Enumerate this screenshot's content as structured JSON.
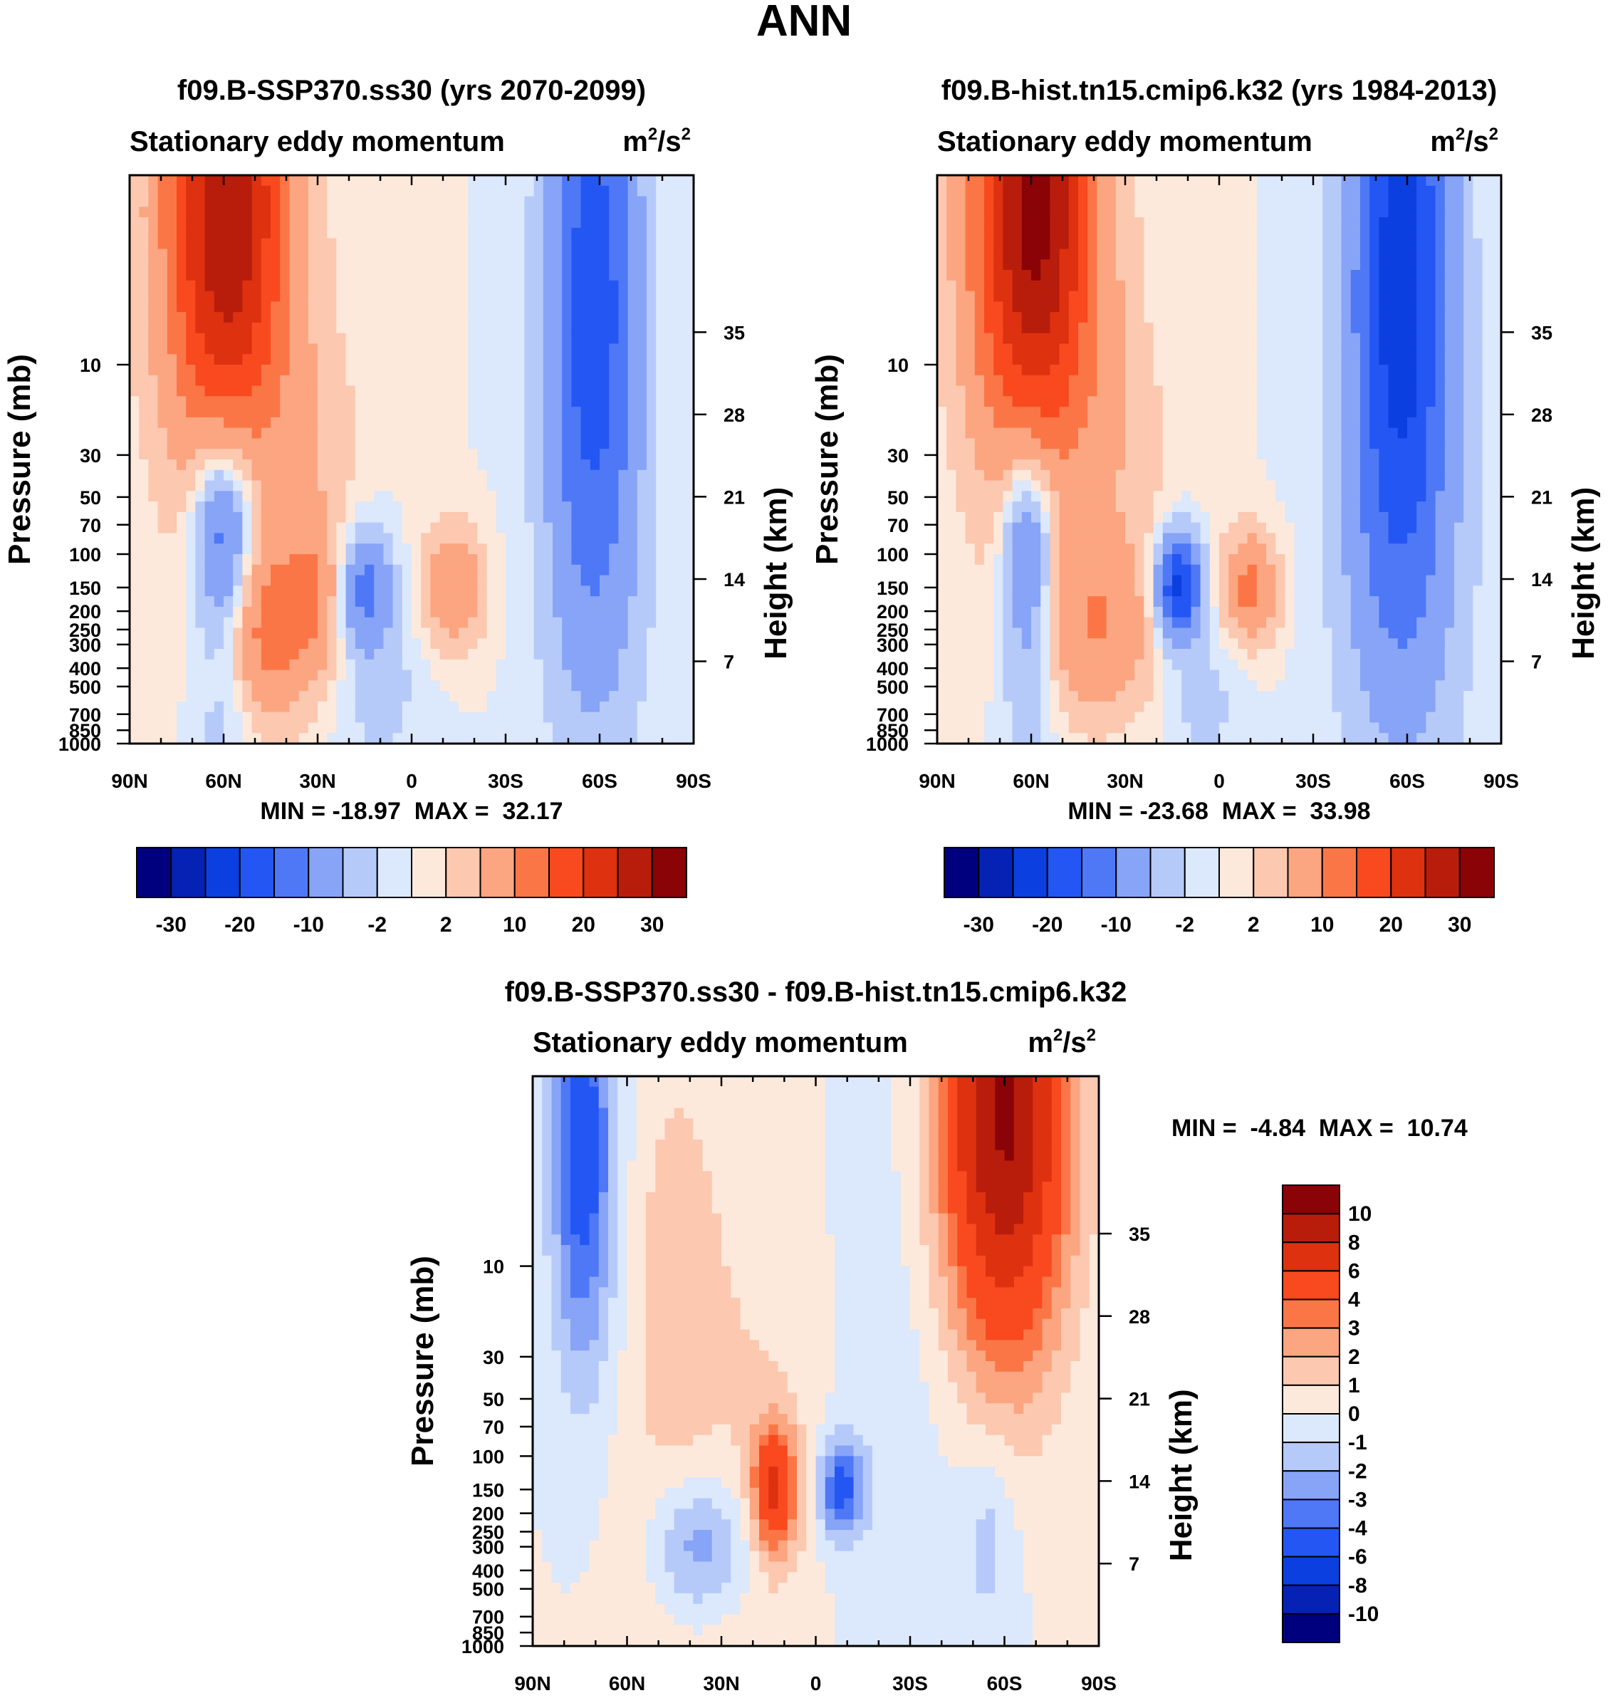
{
  "title": "ANN",
  "chart_data": [
    {
      "type": "heatmap",
      "id": "p1",
      "title": "f09.B-SSP370.ss30 (yrs 2070-2099)",
      "subtitle": "Stationary eddy momentum",
      "units_base": "m",
      "units_exp1": "2",
      "units_mid": "/s",
      "units_exp2": "2",
      "ylabel": "Pressure (mb)",
      "y2label": "Height (km)",
      "xlim": [
        -90,
        90
      ],
      "ylim_mb": [
        1000,
        1
      ],
      "x_ticks": [
        {
          "v": -90,
          "label": "90N"
        },
        {
          "v": -60,
          "label": "60N"
        },
        {
          "v": -30,
          "label": "30N"
        },
        {
          "v": 0,
          "label": "0"
        },
        {
          "v": 30,
          "label": "30S"
        },
        {
          "v": 60,
          "label": "60S"
        },
        {
          "v": 90,
          "label": "90S"
        }
      ],
      "p_ticks": [
        10,
        30,
        50,
        70,
        100,
        150,
        200,
        250,
        300,
        400,
        500,
        700,
        850,
        1000
      ],
      "h_ticks": [
        35,
        28,
        21,
        14,
        7
      ],
      "min_text": "MIN = -18.97  MAX =  32.17",
      "levels": [
        -30,
        -25,
        -20,
        -15,
        -10,
        -5,
        -2,
        0,
        2,
        5,
        10,
        15,
        20,
        25,
        30
      ],
      "colorbar_labels": [
        "-30",
        "-20",
        "-10",
        "-2",
        "2",
        "10",
        "20",
        "30"
      ],
      "blobs": [
        {
          "x": -59,
          "p": 1.5,
          "a": 30,
          "sx": 14,
          "sz": 5.5
        },
        {
          "x": -60,
          "p": 70,
          "a": -15,
          "sx": 7,
          "sz": 2.0
        },
        {
          "x": -60,
          "p": 300,
          "a": -5,
          "sx": 7,
          "sz": 3.5
        },
        {
          "x": -45,
          "p": 250,
          "a": 12,
          "sx": 11,
          "sz": 1.8
        },
        {
          "x": -30,
          "p": 150,
          "a": 6,
          "sx": 6,
          "sz": 1.5
        },
        {
          "x": -15,
          "p": 150,
          "a": -12,
          "sx": 6,
          "sz": 1.2
        },
        {
          "x": 13,
          "p": 150,
          "a": 10,
          "sx": 7,
          "sz": 1.2
        },
        {
          "x": 58,
          "p": 4,
          "a": -18,
          "sx": 10,
          "sz": 6.0
        },
        {
          "x": 58,
          "p": 150,
          "a": -4,
          "sx": 12,
          "sz": 4.5
        },
        {
          "x": -10,
          "p": 500,
          "a": -3,
          "sx": 10,
          "sz": 2.0
        },
        {
          "x": 10,
          "p": 6,
          "a": 2,
          "sx": 3,
          "sz": 3.0
        },
        {
          "x": -30,
          "p": 30,
          "a": 3,
          "sx": 12,
          "sz": 3.0
        }
      ]
    },
    {
      "type": "heatmap",
      "id": "p2",
      "title": "f09.B-hist.tn15.cmip6.k32 (yrs 1984-2013)",
      "subtitle": "Stationary eddy momentum",
      "units_base": "m",
      "units_exp1": "2",
      "units_mid": "/s",
      "units_exp2": "2",
      "ylabel": "Pressure (mb)",
      "y2label": "Height (km)",
      "xlim": [
        -90,
        90
      ],
      "ylim_mb": [
        1000,
        1
      ],
      "x_ticks": [
        {
          "v": -90,
          "label": "90N"
        },
        {
          "v": -60,
          "label": "60N"
        },
        {
          "v": -30,
          "label": "30N"
        },
        {
          "v": 0,
          "label": "0"
        },
        {
          "v": 30,
          "label": "30S"
        },
        {
          "v": 60,
          "label": "60S"
        },
        {
          "v": 90,
          "label": "90S"
        }
      ],
      "p_ticks": [
        10,
        30,
        50,
        70,
        100,
        150,
        200,
        250,
        300,
        400,
        500,
        700,
        850,
        1000
      ],
      "h_ticks": [
        35,
        28,
        21,
        14,
        7
      ],
      "min_text": "MIN = -23.68  MAX =  33.98",
      "levels": [
        -30,
        -25,
        -20,
        -15,
        -10,
        -5,
        -2,
        0,
        2,
        5,
        10,
        15,
        20,
        25,
        30
      ],
      "colorbar_labels": [
        "-30",
        "-20",
        "-10",
        "-2",
        "2",
        "10",
        "20",
        "30"
      ],
      "blobs": [
        {
          "x": -59,
          "p": 1.5,
          "a": 32,
          "sx": 14,
          "sz": 5.5
        },
        {
          "x": -61,
          "p": 70,
          "a": -12,
          "sx": 6,
          "sz": 2.0
        },
        {
          "x": -61,
          "p": 300,
          "a": -6,
          "sx": 6,
          "sz": 3.0
        },
        {
          "x": -38,
          "p": 250,
          "a": 9,
          "sx": 12,
          "sz": 1.8
        },
        {
          "x": -13,
          "p": 150,
          "a": -22,
          "sx": 5,
          "sz": 1.1
        },
        {
          "x": 10,
          "p": 150,
          "a": 12,
          "sx": 6,
          "sz": 1.1
        },
        {
          "x": 58,
          "p": 3,
          "a": -23,
          "sx": 11,
          "sz": 6.5
        },
        {
          "x": 58,
          "p": 150,
          "a": -5,
          "sx": 15,
          "sz": 4.5
        },
        {
          "x": -5,
          "p": 600,
          "a": -3,
          "sx": 8,
          "sz": 1.5
        },
        {
          "x": 0,
          "p": 10,
          "a": 2,
          "sx": 4,
          "sz": 3.0
        },
        {
          "x": -30,
          "p": 30,
          "a": 3,
          "sx": 12,
          "sz": 3.0
        }
      ]
    },
    {
      "type": "heatmap",
      "id": "p3",
      "title": "f09.B-SSP370.ss30 - f09.B-hist.tn15.cmip6.k32",
      "subtitle": "Stationary eddy momentum",
      "units_base": "m",
      "units_exp1": "2",
      "units_mid": "/s",
      "units_exp2": "2",
      "ylabel": "Pressure (mb)",
      "y2label": "Height (km)",
      "xlim": [
        -90,
        90
      ],
      "ylim_mb": [
        1000,
        1
      ],
      "x_ticks": [
        {
          "v": -90,
          "label": "90N"
        },
        {
          "v": -60,
          "label": "60N"
        },
        {
          "v": -30,
          "label": "30N"
        },
        {
          "v": 0,
          "label": "0"
        },
        {
          "v": 30,
          "label": "30S"
        },
        {
          "v": 60,
          "label": "60S"
        },
        {
          "v": 90,
          "label": "90S"
        }
      ],
      "p_ticks": [
        10,
        30,
        50,
        70,
        100,
        150,
        200,
        250,
        300,
        400,
        500,
        700,
        850,
        1000
      ],
      "h_ticks": [
        35,
        28,
        21,
        14,
        7
      ],
      "min_text": "MIN =  -4.84  MAX =  10.74",
      "levels": [
        -10,
        -8,
        -6,
        -4,
        -3,
        -2,
        -1,
        0,
        1,
        2,
        3,
        4,
        6,
        8,
        10
      ],
      "colorbar_labels": [
        "10",
        "8",
        "6",
        "4",
        "3",
        "2",
        "1",
        "0",
        "-1",
        "-2",
        "-3",
        "-4",
        "-6",
        "-8",
        "-10"
      ],
      "blobs": [
        {
          "x": -74,
          "p": 2.5,
          "a": -5,
          "sx": 7,
          "sz": 4.5
        },
        {
          "x": 60,
          "p": 1.5,
          "a": 10.5,
          "sx": 14,
          "sz": 5.0
        },
        {
          "x": -13,
          "p": 150,
          "a": 6,
          "sx": 5,
          "sz": 1.3
        },
        {
          "x": 8,
          "p": 150,
          "a": -4.5,
          "sx": 5,
          "sz": 1.0
        },
        {
          "x": -37,
          "p": 300,
          "a": -3.2,
          "sx": 12,
          "sz": 1.5
        },
        {
          "x": -20,
          "p": 100,
          "a": 1.2,
          "sx": 25,
          "sz": 8.0
        },
        {
          "x": 20,
          "p": 100,
          "a": -0.9,
          "sx": 20,
          "sz": 10.0
        },
        {
          "x": -55,
          "p": 400,
          "a": 0.6,
          "sx": 8,
          "sz": 3.0
        },
        {
          "x": 55,
          "p": 250,
          "a": -1.5,
          "sx": 6,
          "sz": 2.0
        },
        {
          "x": -45,
          "p": 10,
          "a": 1.3,
          "sx": 8,
          "sz": 4.0
        }
      ]
    }
  ]
}
